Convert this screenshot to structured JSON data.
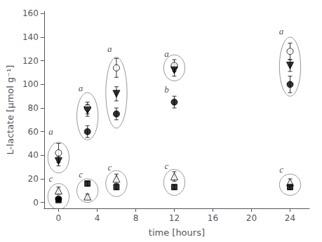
{
  "chart_data": {
    "type": "scatter",
    "x": [
      0,
      3,
      6,
      12,
      24
    ],
    "series": [
      {
        "marker": "circle-open",
        "color": "black",
        "values": [
          42,
          80,
          114,
          116,
          128
        ],
        "yerr": [
          8,
          5,
          8,
          5,
          7
        ]
      },
      {
        "marker": "triangle-down",
        "color": "black",
        "values": [
          35,
          78,
          92,
          112,
          116
        ],
        "yerr": [
          4,
          5,
          6,
          5,
          5
        ]
      },
      {
        "marker": "circle",
        "color": "black",
        "values": [
          3,
          60,
          75,
          85,
          100
        ],
        "yerr": [
          1,
          5,
          5,
          5,
          7
        ]
      },
      {
        "marker": "triangle-open",
        "color": "black",
        "values": [
          10,
          5,
          20,
          22,
          17
        ],
        "yerr": [
          3,
          2,
          4,
          4,
          3
        ]
      },
      {
        "marker": "square",
        "color": "black",
        "values": [
          2,
          16,
          13,
          13,
          13
        ],
        "yerr": [
          1,
          2,
          2,
          2,
          2
        ]
      }
    ],
    "ellipses": [
      {
        "cx": 0,
        "cy": 38,
        "w": 2.2,
        "h": 26
      },
      {
        "cx": 0,
        "cy": 5,
        "w": 2.2,
        "h": 22
      },
      {
        "cx": 3,
        "cy": 73,
        "w": 2.2,
        "h": 40
      },
      {
        "cx": 3,
        "cy": 10,
        "w": 2.2,
        "h": 20
      },
      {
        "cx": 6,
        "cy": 93,
        "w": 2.2,
        "h": 60
      },
      {
        "cx": 6,
        "cy": 16,
        "w": 2.2,
        "h": 22
      },
      {
        "cx": 12,
        "cy": 114,
        "w": 2.2,
        "h": 22
      },
      {
        "cx": 12,
        "cy": 17,
        "w": 2.2,
        "h": 22
      },
      {
        "cx": 24,
        "cy": 115,
        "w": 2.2,
        "h": 50
      },
      {
        "cx": 24,
        "cy": 15,
        "w": 2.2,
        "h": 18
      }
    ],
    "annotations": [
      {
        "text": "a",
        "x": -0.8,
        "y": 60
      },
      {
        "text": "c",
        "x": -0.8,
        "y": 20
      },
      {
        "text": "a",
        "x": 2.3,
        "y": 97
      },
      {
        "text": "c",
        "x": 2.3,
        "y": 24
      },
      {
        "text": "a",
        "x": 5.3,
        "y": 130
      },
      {
        "text": "c",
        "x": 5.3,
        "y": 30
      },
      {
        "text": "a",
        "x": 11.2,
        "y": 126
      },
      {
        "text": "b",
        "x": 11.2,
        "y": 96
      },
      {
        "text": "c",
        "x": 11.2,
        "y": 31
      },
      {
        "text": "a",
        "x": 23.1,
        "y": 145
      },
      {
        "text": "c",
        "x": 23.1,
        "y": 28
      }
    ],
    "xlabel": "time [hours]",
    "ylabel": "L-lactate [μmol g⁻¹]",
    "xlim": [
      -1.5,
      26
    ],
    "ylim": [
      -5,
      162
    ],
    "xticks": [
      0,
      4,
      8,
      12,
      16,
      20,
      24
    ],
    "yticks": [
      0,
      20,
      40,
      60,
      80,
      100,
      120,
      140,
      160
    ],
    "grid": false
  }
}
